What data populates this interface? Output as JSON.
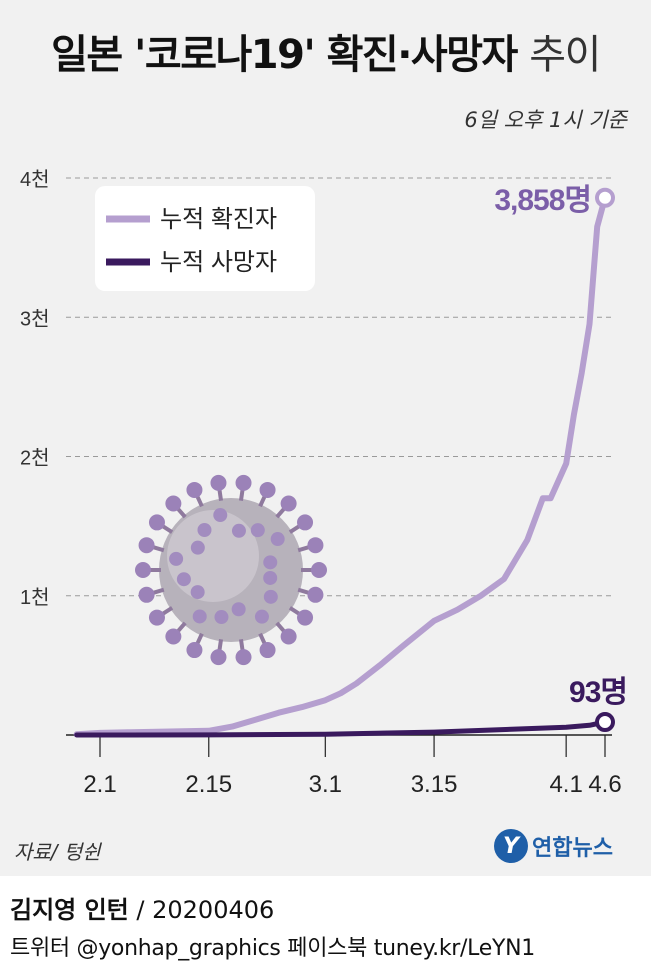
{
  "title": {
    "main": "일본 '코로나19' 확진·사망자",
    "suffix": "추이"
  },
  "subtitle": "6일 오후 1시 기준",
  "legend": {
    "confirmed": "누적 확진자",
    "deaths": "누적 사망자"
  },
  "annotations": {
    "confirmed_last": "3,858명",
    "deaths_last": "93명"
  },
  "y_ticks": [
    "1천",
    "2천",
    "3천",
    "4천"
  ],
  "x_ticks": [
    "2.1",
    "2.15",
    "3.1",
    "3.15",
    "4.1",
    "4.6"
  ],
  "source": "자료/ 텅쉰",
  "logo": {
    "mark": "Y",
    "text": "연합뉴스"
  },
  "credit": {
    "author": "김지영 인턴",
    "date": "/ 20200406"
  },
  "social": "트위터 @yonhap_graphics  페이스북 tuney.kr/LeYN1",
  "colors": {
    "confirmed": "#b59fcf",
    "deaths": "#3a1a5e",
    "grid": "#9a9a9a",
    "annotation": "#7b5ea8"
  },
  "chart_data": {
    "type": "line",
    "x_tick_labels": [
      "2.1",
      "2.15",
      "3.1",
      "3.15",
      "4.1",
      "4.6"
    ],
    "ylim": [
      0,
      4000
    ],
    "y_tick_values": [
      1000,
      2000,
      3000,
      4000
    ],
    "y_tick_labels": [
      "1천",
      "2천",
      "3천",
      "4천"
    ],
    "grid": "horizontal dashed",
    "legend_position": "top-left",
    "series": [
      {
        "name": "누적 확진자",
        "color": "#b59fcf",
        "x": [
          "1.28",
          "2.1",
          "2.5",
          "2.10",
          "2.15",
          "2.18",
          "2.21",
          "2.24",
          "2.27",
          "3.1",
          "3.3",
          "3.5",
          "3.8",
          "3.11",
          "3.15",
          "3.18",
          "3.21",
          "3.24",
          "3.27",
          "3.29",
          "3.30",
          "4.1",
          "4.2",
          "4.3",
          "4.4",
          "4.5",
          "4.6"
        ],
        "values": [
          5,
          15,
          20,
          25,
          30,
          60,
          110,
          160,
          200,
          250,
          300,
          370,
          500,
          640,
          820,
          900,
          1000,
          1120,
          1400,
          1700,
          1700,
          1950,
          2300,
          2600,
          2950,
          3650,
          3858
        ]
      },
      {
        "name": "누적 사망자",
        "color": "#3a1a5e",
        "x": [
          "1.28",
          "2.15",
          "3.1",
          "3.15",
          "4.1",
          "4.4",
          "4.6"
        ],
        "values": [
          0,
          1,
          6,
          21,
          56,
          70,
          93
        ]
      }
    ]
  }
}
